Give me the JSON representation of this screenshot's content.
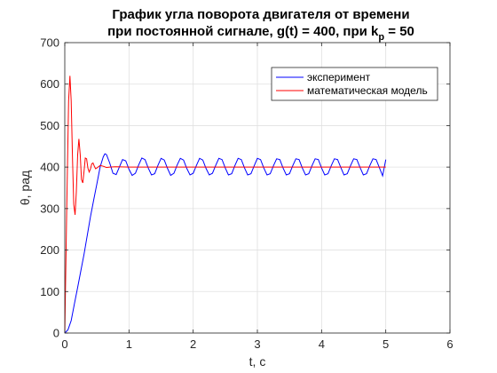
{
  "chart_data": {
    "type": "line",
    "title_line1": "График угла поворота двигателя от времени",
    "title_line2_prefix": "при постоянной сигнале, g(t) = 400, при k",
    "title_line2_sub": "p",
    "title_line2_suffix": " = 50",
    "xlabel": "t, c",
    "ylabel": "θ, рад",
    "xlim": [
      0,
      6
    ],
    "ylim": [
      0,
      700
    ],
    "xticks": [
      "0",
      "1",
      "2",
      "3",
      "4",
      "5",
      "6"
    ],
    "yticks": [
      "0",
      "100",
      "200",
      "300",
      "400",
      "500",
      "600",
      "700"
    ],
    "grid": true,
    "legend_position": "top-right",
    "series": [
      {
        "name": "эксперимент",
        "color": "#0000ff",
        "x": [
          0,
          0.05,
          0.1,
          0.15,
          0.2,
          0.25,
          0.3,
          0.35,
          0.4,
          0.45,
          0.5,
          0.55,
          0.6,
          0.625,
          0.65,
          0.7,
          0.75,
          0.8,
          0.85,
          0.9,
          0.95,
          1.0,
          1.05,
          1.1,
          1.15,
          1.2,
          1.25,
          1.3,
          1.35,
          1.4,
          1.45,
          1.5,
          1.55,
          1.6,
          1.65,
          1.7,
          1.75,
          1.8,
          1.85,
          1.9,
          1.95,
          2.0,
          2.05,
          2.1,
          2.15,
          2.2,
          2.25,
          2.3,
          2.35,
          2.4,
          2.45,
          2.5,
          2.55,
          2.6,
          2.65,
          2.7,
          2.75,
          2.8,
          2.85,
          2.9,
          2.95,
          3.0,
          3.05,
          3.1,
          3.15,
          3.2,
          3.25,
          3.3,
          3.35,
          3.4,
          3.45,
          3.5,
          3.55,
          3.6,
          3.65,
          3.7,
          3.75,
          3.8,
          3.85,
          3.9,
          3.95,
          4.0,
          4.05,
          4.1,
          4.15,
          4.2,
          4.25,
          4.3,
          4.35,
          4.4,
          4.45,
          4.5,
          4.55,
          4.6,
          4.65,
          4.7,
          4.75,
          4.8,
          4.85,
          4.9,
          4.95,
          5.0
        ],
        "y": [
          0,
          8,
          30,
          70,
          110,
          150,
          190,
          235,
          280,
          320,
          360,
          400,
          425,
          432,
          430,
          410,
          385,
          382,
          400,
          418,
          415,
          395,
          380,
          385,
          405,
          422,
          418,
          398,
          381,
          384,
          404,
          421,
          417,
          397,
          380,
          385,
          405,
          421,
          417,
          397,
          381,
          385,
          404,
          421,
          417,
          397,
          381,
          385,
          404,
          421,
          418,
          398,
          381,
          384,
          404,
          421,
          418,
          398,
          381,
          384,
          403,
          421,
          418,
          398,
          381,
          384,
          403,
          420,
          418,
          398,
          381,
          384,
          403,
          420,
          418,
          398,
          381,
          384,
          403,
          420,
          418,
          398,
          381,
          384,
          403,
          420,
          418,
          399,
          381,
          384,
          403,
          420,
          418,
          399,
          381,
          384,
          403,
          420,
          418,
          399,
          379,
          418
        ]
      },
      {
        "name": "математическая модель",
        "color": "#ff0000",
        "x": [
          0,
          0.03,
          0.06,
          0.08,
          0.1,
          0.12,
          0.14,
          0.16,
          0.18,
          0.2,
          0.22,
          0.24,
          0.26,
          0.28,
          0.3,
          0.32,
          0.34,
          0.36,
          0.38,
          0.4,
          0.42,
          0.44,
          0.46,
          0.48,
          0.5,
          0.55,
          0.6,
          0.65,
          0.7,
          0.8,
          1.0,
          1.5,
          2.0,
          2.5,
          3.0,
          3.5,
          4.0,
          4.5,
          5.0
        ],
        "y": [
          0,
          300,
          560,
          620,
          560,
          420,
          310,
          285,
          340,
          430,
          468,
          430,
          370,
          362,
          390,
          422,
          420,
          398,
          388,
          395,
          408,
          410,
          402,
          396,
          398,
          404,
          402,
          399,
          400,
          401,
          400,
          400,
          400,
          400,
          400,
          400,
          400,
          400,
          400
        ]
      }
    ]
  }
}
